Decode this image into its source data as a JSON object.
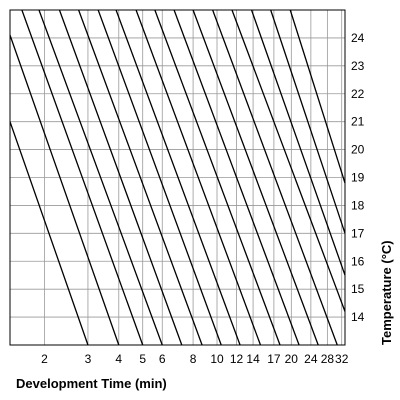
{
  "chart_data": {
    "type": "line",
    "title": "",
    "xlabel": "Development Time (min)",
    "ylabel": "Temperature  (°C)",
    "x_scale": "log",
    "x_tick_labels": [
      "2",
      "3",
      "4",
      "5",
      "6",
      "8",
      "10",
      "12",
      "14",
      "17",
      "20",
      "24",
      "28",
      "32"
    ],
    "x_ticks": [
      2,
      3,
      4,
      5,
      6,
      8,
      10,
      12,
      14,
      17,
      20,
      24,
      28,
      32
    ],
    "x_range": [
      1.45,
      33
    ],
    "y_tick_labels": [
      "14",
      "15",
      "16",
      "17",
      "18",
      "19",
      "20",
      "21",
      "22",
      "23",
      "24"
    ],
    "y_ticks": [
      14,
      15,
      16,
      17,
      18,
      19,
      20,
      21,
      22,
      23,
      24
    ],
    "ylim": [
      13,
      25
    ],
    "grid": true,
    "legend": "none",
    "line_color": "#000000",
    "grid_color": "#999999",
    "series": [
      {
        "x": [
          1.45,
          3.0
        ],
        "y": [
          21.0,
          13.0
        ]
      },
      {
        "x": [
          1.45,
          4.0
        ],
        "y": [
          24.1,
          13.0
        ]
      },
      {
        "x": [
          1.62,
          5.0
        ],
        "y": [
          25.0,
          13.0
        ]
      },
      {
        "x": [
          1.9,
          6.0
        ],
        "y": [
          25.0,
          13.0
        ]
      },
      {
        "x": [
          2.3,
          7.2
        ],
        "y": [
          25.0,
          13.0
        ]
      },
      {
        "x": [
          2.75,
          8.7
        ],
        "y": [
          25.0,
          13.0
        ]
      },
      {
        "x": [
          3.3,
          10.4
        ],
        "y": [
          25.0,
          13.0
        ]
      },
      {
        "x": [
          3.9,
          12.4
        ],
        "y": [
          25.0,
          13.0
        ]
      },
      {
        "x": [
          4.7,
          15.0
        ],
        "y": [
          25.0,
          13.0
        ]
      },
      {
        "x": [
          5.6,
          18.0
        ],
        "y": [
          25.0,
          13.0
        ]
      },
      {
        "x": [
          6.7,
          21.5
        ],
        "y": [
          25.0,
          13.0
        ]
      },
      {
        "x": [
          8.0,
          25.7
        ],
        "y": [
          25.0,
          13.0
        ]
      },
      {
        "x": [
          9.6,
          30.7
        ],
        "y": [
          25.0,
          13.0
        ]
      },
      {
        "x": [
          11.5,
          33.0
        ],
        "y": [
          25.0,
          14.2
        ]
      },
      {
        "x": [
          13.8,
          33.0
        ],
        "y": [
          25.0,
          15.5
        ]
      },
      {
        "x": [
          16.5,
          33.0
        ],
        "y": [
          25.0,
          17.0
        ]
      },
      {
        "x": [
          19.8,
          33.0
        ],
        "y": [
          25.0,
          18.8
        ]
      }
    ]
  }
}
